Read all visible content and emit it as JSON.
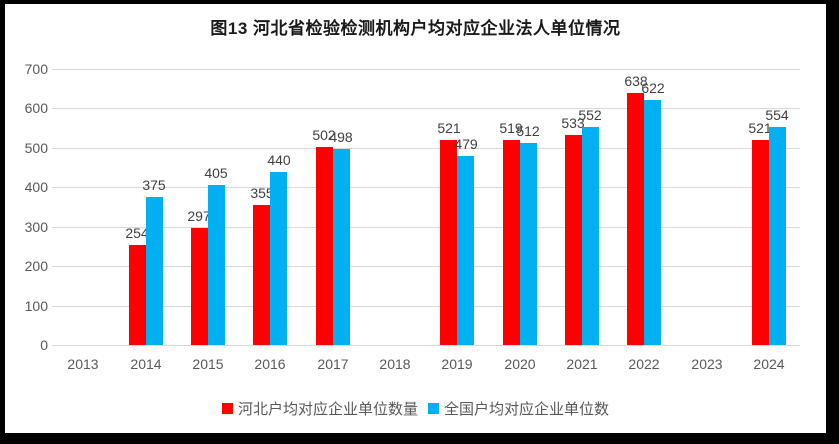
{
  "title": "图13 河北省检验检测机构户均对应企业法人单位情况",
  "colors": {
    "hebei_series": "#ff0000",
    "national_series": "#00b0f0",
    "gridline": "#d9d9d9",
    "axis_text": "#595959",
    "data_label_text": "#404040",
    "frame_border": "#000000",
    "background": "#ffffff"
  },
  "chart_data": {
    "type": "bar",
    "title": "图13 河北省检验检测机构户均对应企业法人单位情况",
    "categories": [
      "2013",
      "2014",
      "2015",
      "2016",
      "2017",
      "2018",
      "2019",
      "2020",
      "2021",
      "2022",
      "2023",
      "2024"
    ],
    "series": [
      {
        "name": "河北户均对应企业单位数量",
        "color": "#ff0000",
        "values": [
          null,
          254,
          297,
          355,
          502,
          null,
          521,
          519,
          533,
          638,
          null,
          521
        ]
      },
      {
        "name": "全国户均对应企业单位数",
        "color": "#00b0f0",
        "values": [
          null,
          375,
          405,
          440,
          498,
          null,
          479,
          512,
          552,
          622,
          null,
          554
        ]
      }
    ],
    "ylim": [
      0,
      700
    ],
    "ytick_step": 100,
    "yticks": [
      "0",
      "100",
      "200",
      "300",
      "400",
      "500",
      "600",
      "700"
    ],
    "grid": true,
    "data_labels": true,
    "legend_position": "bottom",
    "xlabel": "",
    "ylabel": ""
  }
}
